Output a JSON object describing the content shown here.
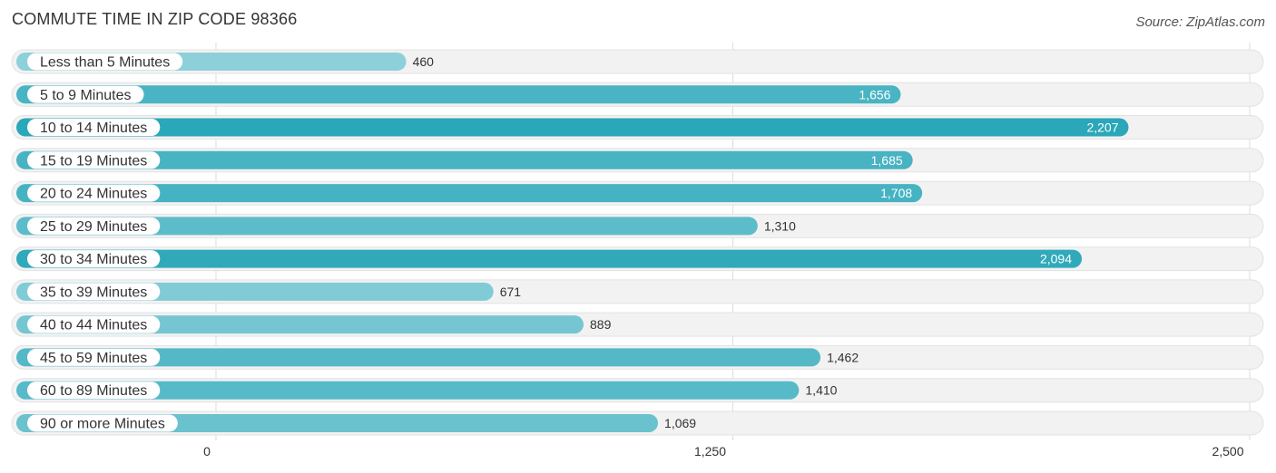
{
  "header": {
    "title": "COMMUTE TIME IN ZIP CODE 98366",
    "source": "Source: ZipAtlas.com"
  },
  "colors": {
    "bar_dark": "#2aa7b8",
    "bar_light": "#8dd0da",
    "row_bg": "#f2f2f2"
  },
  "chart_data": {
    "type": "bar",
    "orientation": "horizontal",
    "title": "COMMUTE TIME IN ZIP CODE 98366",
    "categories": [
      "Less than 5 Minutes",
      "5 to 9 Minutes",
      "10 to 14 Minutes",
      "15 to 19 Minutes",
      "20 to 24 Minutes",
      "25 to 29 Minutes",
      "30 to 34 Minutes",
      "35 to 39 Minutes",
      "40 to 44 Minutes",
      "45 to 59 Minutes",
      "60 to 89 Minutes",
      "90 or more Minutes"
    ],
    "values": [
      460,
      1656,
      2207,
      1685,
      1708,
      1310,
      2094,
      671,
      889,
      1462,
      1410,
      1069
    ],
    "value_labels": [
      "460",
      "1,656",
      "2,207",
      "1,685",
      "1,708",
      "1,310",
      "2,094",
      "671",
      "889",
      "1,462",
      "1,410",
      "1,069"
    ],
    "xlim": [
      0,
      2500
    ],
    "ticks": [
      0,
      1250,
      2500
    ],
    "tick_labels": [
      "0",
      "1,250",
      "2,500"
    ],
    "xlabel": "",
    "ylabel": "",
    "grid": true
  }
}
